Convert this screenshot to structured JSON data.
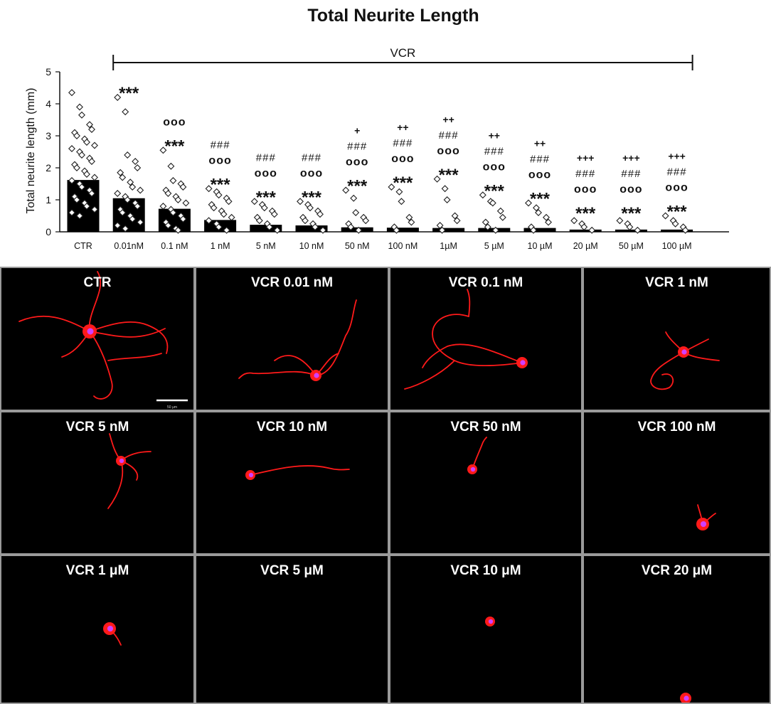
{
  "chart_data": {
    "type": "bar",
    "title": "Total Neurite Length",
    "ylabel": "Total neurite length (mm)",
    "xlabel": "",
    "ylim": [
      0,
      5
    ],
    "yticks": [
      "0",
      "1",
      "2",
      "3",
      "4",
      "5"
    ],
    "group_label": "VCR",
    "categories": [
      "CTR",
      "0.01nM",
      "0.1 nM",
      "1 nM",
      "5 nM",
      "10 nM",
      "50 nM",
      "100 nM",
      "1µM",
      "5 µM",
      "10 µM",
      "20 µM",
      "50 µM",
      "100 µM"
    ],
    "values": [
      1.62,
      1.05,
      0.72,
      0.37,
      0.22,
      0.2,
      0.14,
      0.13,
      0.12,
      0.12,
      0.12,
      0.07,
      0.07,
      0.07
    ],
    "points": [
      [
        4.35,
        3.9,
        3.65,
        3.35,
        3.2,
        3.1,
        3.0,
        2.9,
        2.8,
        2.7,
        2.6,
        2.5,
        2.4,
        2.3,
        2.2,
        2.1,
        2.0,
        1.9,
        1.8,
        1.7,
        1.6,
        1.5,
        1.4,
        1.3,
        1.2,
        1.1,
        1.0,
        0.9,
        0.8,
        0.7,
        0.6,
        0.5
      ],
      [
        4.2,
        3.75,
        2.4,
        2.2,
        2.0,
        1.85,
        1.7,
        1.55,
        1.4,
        1.3,
        1.2,
        1.1,
        1.0,
        0.9,
        0.8,
        0.7,
        0.6,
        0.5,
        0.4,
        0.3,
        0.2,
        0.1
      ],
      [
        2.55,
        2.05,
        1.6,
        1.5,
        1.4,
        1.3,
        1.2,
        1.1,
        1.0,
        0.9,
        0.8,
        0.7,
        0.6,
        0.5,
        0.4,
        0.3,
        0.2,
        0.1,
        0.05
      ],
      [
        1.35,
        1.25,
        1.15,
        1.05,
        0.95,
        0.85,
        0.75,
        0.65,
        0.55,
        0.45,
        0.35,
        0.25,
        0.15,
        0.05
      ],
      [
        0.95,
        0.85,
        0.75,
        0.65,
        0.55,
        0.45,
        0.35,
        0.25,
        0.15,
        0.05
      ],
      [
        0.95,
        0.85,
        0.75,
        0.65,
        0.55,
        0.45,
        0.35,
        0.25,
        0.15,
        0.05
      ],
      [
        1.3,
        1.05,
        0.6,
        0.45,
        0.35,
        0.25,
        0.15,
        0.05
      ],
      [
        1.4,
        1.25,
        0.95,
        0.45,
        0.3,
        0.15,
        0.05
      ],
      [
        1.65,
        1.35,
        1.0,
        0.5,
        0.35,
        0.2,
        0.05
      ],
      [
        1.15,
        0.95,
        0.9,
        0.65,
        0.45,
        0.3,
        0.15,
        0.05
      ],
      [
        0.9,
        0.75,
        0.6,
        0.45,
        0.3,
        0.15,
        0.05
      ],
      [
        0.35,
        0.25,
        0.15,
        0.05
      ],
      [
        0.35,
        0.25,
        0.15,
        0.05
      ],
      [
        0.5,
        0.35,
        0.25,
        0.15,
        0.05
      ]
    ],
    "annotations": [
      {
        "category": "0.01nM",
        "lines": [
          "***"
        ]
      },
      {
        "category": "0.1 nM",
        "lines": [
          "ooo",
          "***"
        ]
      },
      {
        "category": "1 nM",
        "lines": [
          "###",
          "ooo",
          "***"
        ]
      },
      {
        "category": "5 nM",
        "lines": [
          "###",
          "ooo",
          "***"
        ]
      },
      {
        "category": "10 nM",
        "lines": [
          "###",
          "ooo",
          "***"
        ]
      },
      {
        "category": "50 nM",
        "lines": [
          "+",
          "###",
          "ooo",
          "***"
        ]
      },
      {
        "category": "100 nM",
        "lines": [
          "++",
          "###",
          "ooo",
          "***"
        ]
      },
      {
        "category": "1µM",
        "lines": [
          "++",
          "###",
          "ooo",
          "***"
        ]
      },
      {
        "category": "5 µM",
        "lines": [
          "++",
          "###",
          "ooo",
          "***"
        ]
      },
      {
        "category": "10 µM",
        "lines": [
          "++",
          "###",
          "ooo",
          "***"
        ]
      },
      {
        "category": "20 µM",
        "lines": [
          "+++",
          "###",
          "ooo",
          "***"
        ]
      },
      {
        "category": "50 µM",
        "lines": [
          "+++",
          "###",
          "ooo",
          "***"
        ]
      },
      {
        "category": "100 µM",
        "lines": [
          "+++",
          "###",
          "ooo",
          "***"
        ]
      }
    ]
  },
  "micrographs": {
    "scale_bar_text": "50 µm",
    "background_color": "#000000",
    "neuron_color": "#ff1a1a",
    "nucleus_color": "#d040ff",
    "panels": [
      {
        "label": "CTR"
      },
      {
        "label": "VCR 0.01 nM"
      },
      {
        "label": "VCR 0.1 nM"
      },
      {
        "label": "VCR 1 nM"
      },
      {
        "label": "VCR 5 nM"
      },
      {
        "label": "VCR 10 nM"
      },
      {
        "label": "VCR 50 nM"
      },
      {
        "label": "VCR 100 nM"
      },
      {
        "label": "VCR 1 μM"
      },
      {
        "label": "VCR 5 μM"
      },
      {
        "label": "VCR 10 μM"
      },
      {
        "label": "VCR 20 μM"
      }
    ]
  }
}
